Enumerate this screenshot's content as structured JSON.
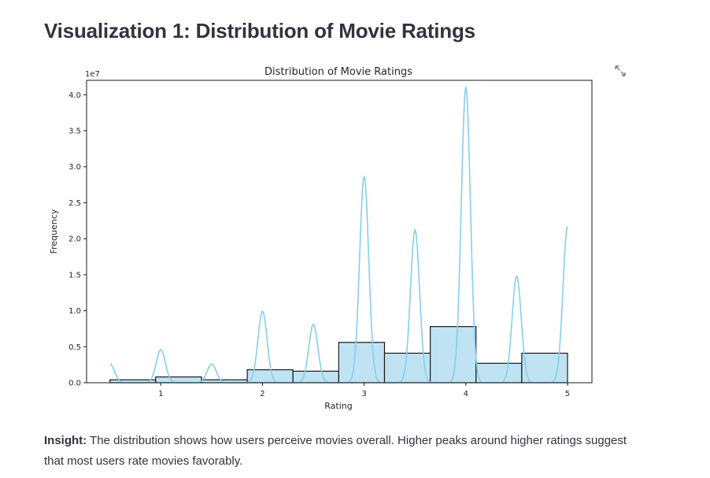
{
  "page": {
    "heading": "Visualization 1: Distribution of Movie Ratings",
    "expand_icon": "expand-arrows-icon",
    "insight_label": "Insight:",
    "insight_text": " The distribution shows how users perceive movies overall. Higher peaks around higher ratings suggest that most users rate movies favorably."
  },
  "chart_data": {
    "type": "bar",
    "title": "Distribution of Movie Ratings",
    "xlabel": "Rating",
    "ylabel": "Frequency",
    "y_scale_label": "1e7",
    "xlim": [
      0.27,
      5.24
    ],
    "ylim": [
      0,
      4.2
    ],
    "x_ticks": [
      1,
      2,
      3,
      4,
      5
    ],
    "y_ticks": [
      0.0,
      0.5,
      1.0,
      1.5,
      2.0,
      2.5,
      3.0,
      3.5,
      4.0
    ],
    "grid": false,
    "bar_color": "#bfe3f3",
    "bar_edge": "#1a1a1a",
    "kde_color": "#87ceeb",
    "bins": [
      {
        "x0": 0.5,
        "x1": 0.95,
        "value": 0.04
      },
      {
        "x0": 0.95,
        "x1": 1.4,
        "value": 0.08
      },
      {
        "x0": 1.4,
        "x1": 1.85,
        "value": 0.04
      },
      {
        "x0": 1.85,
        "x1": 2.3,
        "value": 0.18
      },
      {
        "x0": 2.3,
        "x1": 2.75,
        "value": 0.16
      },
      {
        "x0": 2.75,
        "x1": 3.2,
        "value": 0.56
      },
      {
        "x0": 3.2,
        "x1": 3.65,
        "value": 0.41
      },
      {
        "x0": 3.65,
        "x1": 4.1,
        "value": 0.78
      },
      {
        "x0": 4.1,
        "x1": 4.55,
        "value": 0.27
      },
      {
        "x0": 4.55,
        "x1": 5.0,
        "value": 0.41
      }
    ],
    "kde_peaks": [
      {
        "x": 0.5,
        "y": 0.26
      },
      {
        "x": 1.0,
        "y": 0.46
      },
      {
        "x": 1.5,
        "y": 0.26
      },
      {
        "x": 2.0,
        "y": 0.99
      },
      {
        "x": 2.5,
        "y": 0.81
      },
      {
        "x": 3.0,
        "y": 2.86
      },
      {
        "x": 3.5,
        "y": 2.12
      },
      {
        "x": 4.0,
        "y": 4.1
      },
      {
        "x": 4.5,
        "y": 1.48
      },
      {
        "x": 5.0,
        "y": 2.17
      }
    ]
  }
}
